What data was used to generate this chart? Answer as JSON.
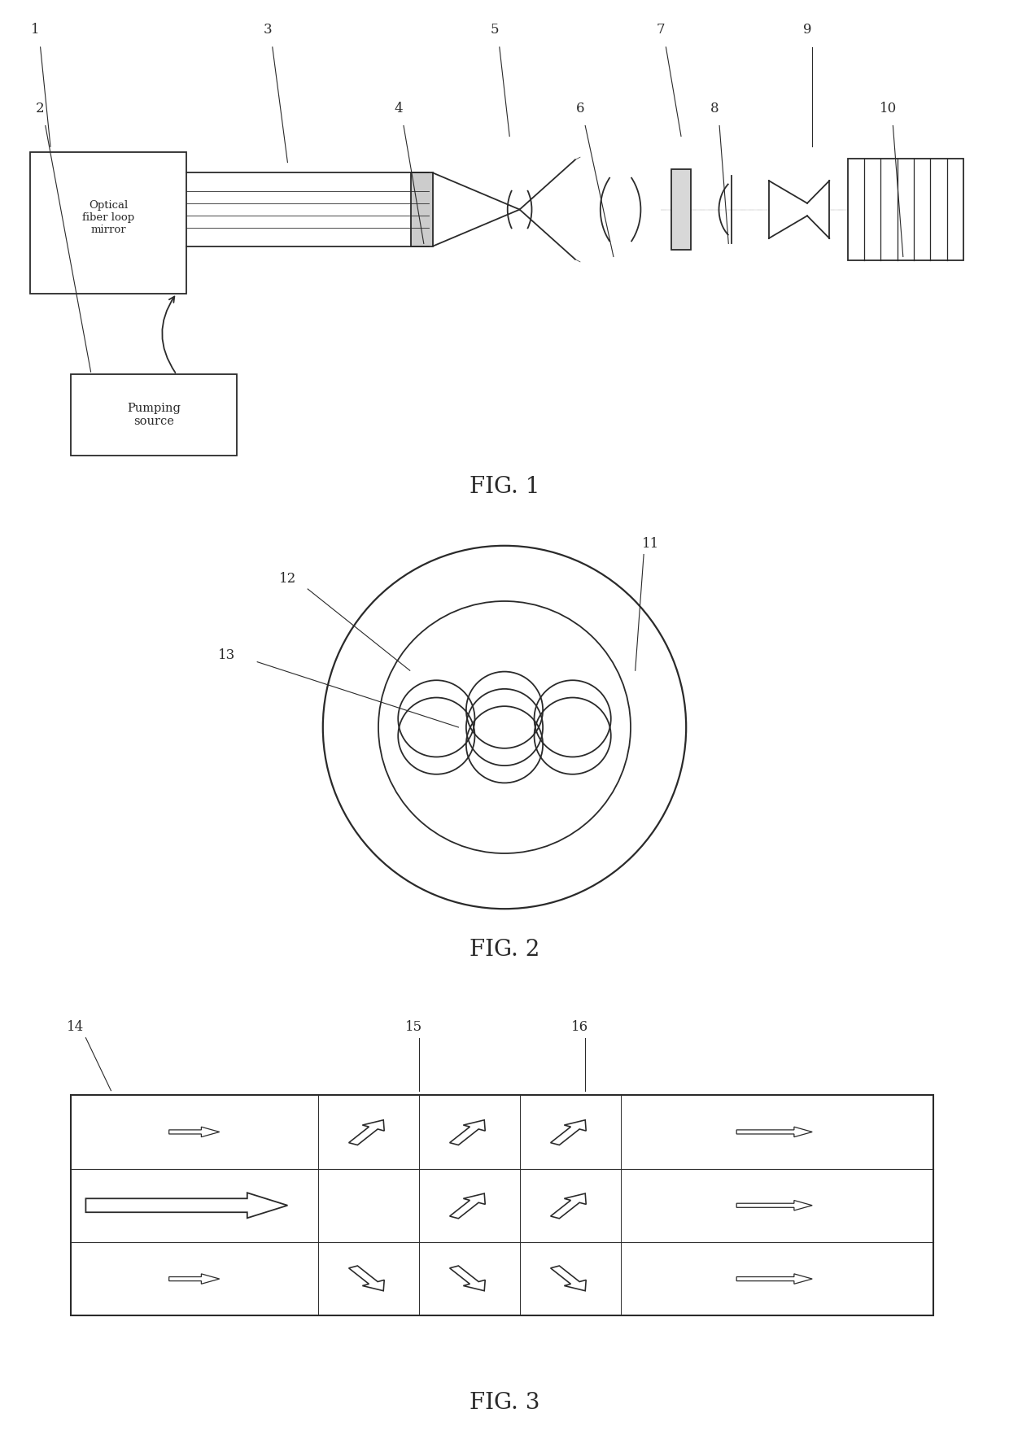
{
  "bg_color": "#ffffff",
  "line_color": "#2a2a2a",
  "fig1_caption": "FIG. 1",
  "fig2_caption": "FIG. 2",
  "fig3_caption": "FIG. 3",
  "label_fontsize": 12,
  "caption_fontsize": 20
}
